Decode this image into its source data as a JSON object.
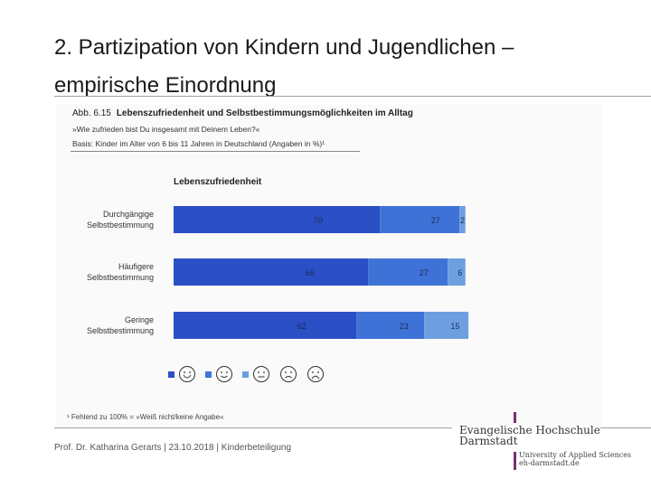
{
  "slide": {
    "title": "2. Partizipation von Kindern und Jugendlichen – empirische Einordnung",
    "footer": "Prof. Dr. Katharina Gerarts | 23.10.2018 | Kinderbeteiligung"
  },
  "figure": {
    "label": "Abb. 6.15",
    "heading": "Lebenszufriedenheit und Selbstbestimmungsmöglichkeiten im Alltag",
    "question": "»Wie zufrieden bist Du insgesamt mit Deinem Leben?«",
    "basis": "Basis: Kinder im Alter von 6 bis 11 Jahren in Deutschland (Angaben in %)¹",
    "footnote": "¹ Fehlend zu 100% = »Weiß nicht/keine Angabe«"
  },
  "chart_data": {
    "type": "bar",
    "orientation": "horizontal",
    "stacked": true,
    "title": "Lebenszufriedenheit",
    "categories": [
      "Durchgängige Selbstbestimmung",
      "Häufigere Selbstbestimmung",
      "Geringe Selbstbestimmung"
    ],
    "category_lines": [
      [
        "Durchgängige",
        "Selbstbestimmung"
      ],
      [
        "Häufigere",
        "Selbstbestimmung"
      ],
      [
        "Geringe",
        "Selbstbestimmung"
      ]
    ],
    "series": [
      {
        "name": "sehr zufrieden",
        "icon": "very-happy-face",
        "color": "#2b4fc4",
        "values": [
          70,
          66,
          62
        ]
      },
      {
        "name": "zufrieden",
        "icon": "happy-face",
        "color": "#3f72d6",
        "values": [
          27,
          27,
          23
        ]
      },
      {
        "name": "teils/teils",
        "icon": "neutral-face",
        "color": "#6d9fe0",
        "values": [
          2,
          6,
          15
        ]
      }
    ],
    "legend_icons": [
      "very-happy-face",
      "happy-face",
      "neutral-face",
      "unhappy-face",
      "very-unhappy-face"
    ],
    "xlim": [
      0,
      100
    ],
    "unit": "%"
  },
  "logo": {
    "name_line1": "Evangelische Hochschule",
    "name_line2": "Darmstadt",
    "sub_line1": "University of Applied Sciences",
    "sub_line2": "eh-darmstadt.de",
    "accent": "#7a2e6e"
  }
}
